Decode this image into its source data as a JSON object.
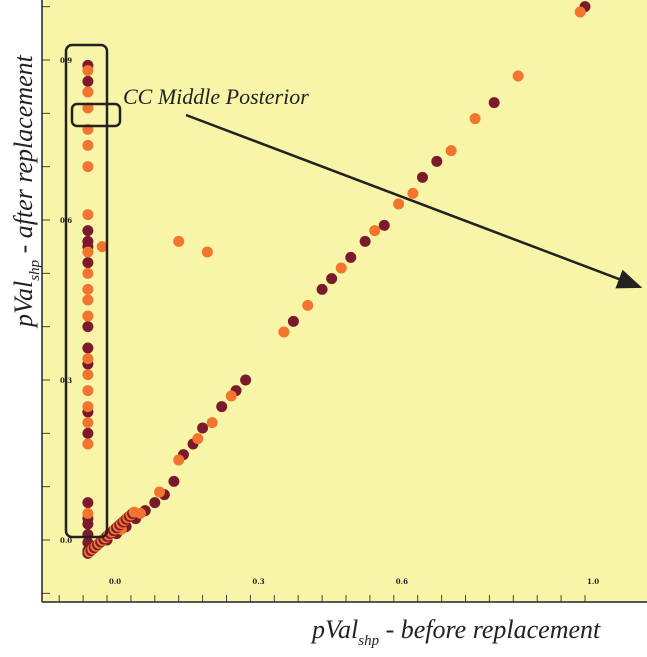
{
  "chart_data": {
    "type": "scatter",
    "xlabel": {
      "main": "pVal",
      "sub": "shp",
      "rest": " - before replacement"
    },
    "ylabel": {
      "main": "pVal",
      "sub": "shp",
      "rest": " - after replacement"
    },
    "xlim": [
      -0.13,
      1.05
    ],
    "ylim": [
      -0.14,
      1.0
    ],
    "x_ticks": [
      {
        "value": 0.0,
        "label": "0.0"
      },
      {
        "value": 0.3,
        "label": "0.3"
      },
      {
        "value": 0.6,
        "label": "0.6"
      },
      {
        "value": 1.0,
        "label": "1.0"
      }
    ],
    "y_ticks": [
      {
        "value": 0.0,
        "label": "0.0"
      },
      {
        "value": 0.3,
        "label": "0.3"
      },
      {
        "value": 0.6,
        "label": "0.6"
      },
      {
        "value": 0.9,
        "label": "0.9"
      }
    ],
    "grid": false,
    "background_color": "#f8f5a9",
    "series": [
      {
        "color": "#7a1a2c",
        "points": [
          [
            -0.04,
            0.89
          ],
          [
            -0.04,
            0.86
          ],
          [
            -0.04,
            0.58
          ],
          [
            -0.04,
            0.56
          ],
          [
            -0.04,
            0.55
          ],
          [
            -0.04,
            0.52
          ],
          [
            -0.04,
            0.4
          ],
          [
            -0.04,
            0.36
          ],
          [
            -0.04,
            0.33
          ],
          [
            -0.04,
            0.24
          ],
          [
            -0.04,
            0.2
          ],
          [
            -0.04,
            0.07
          ],
          [
            -0.04,
            0.04
          ],
          [
            -0.04,
            0.03
          ],
          [
            -0.04,
            0.01
          ],
          [
            -0.04,
            -0.005
          ],
          [
            -0.04,
            -0.02
          ],
          [
            0.0,
            0.0
          ],
          [
            0.02,
            0.012
          ],
          [
            0.04,
            0.025
          ],
          [
            0.06,
            0.04
          ],
          [
            0.08,
            0.055
          ],
          [
            0.1,
            0.07
          ],
          [
            0.12,
            0.085
          ],
          [
            0.14,
            0.11
          ],
          [
            0.16,
            0.16
          ],
          [
            0.18,
            0.18
          ],
          [
            0.2,
            0.21
          ],
          [
            0.24,
            0.25
          ],
          [
            0.27,
            0.28
          ],
          [
            0.29,
            0.3
          ],
          [
            0.39,
            0.41
          ],
          [
            0.45,
            0.47
          ],
          [
            0.47,
            0.49
          ],
          [
            0.51,
            0.53
          ],
          [
            0.54,
            0.56
          ],
          [
            0.58,
            0.59
          ],
          [
            0.66,
            0.68
          ],
          [
            0.69,
            0.71
          ],
          [
            0.81,
            0.82
          ],
          [
            1.0,
            1.0
          ]
        ]
      },
      {
        "color": "#f2742d",
        "points": [
          [
            -0.04,
            0.88
          ],
          [
            -0.04,
            0.84
          ],
          [
            -0.04,
            0.81
          ],
          [
            -0.04,
            0.77
          ],
          [
            -0.04,
            0.74
          ],
          [
            -0.04,
            0.7
          ],
          [
            -0.04,
            0.61
          ],
          [
            -0.04,
            0.54
          ],
          [
            -0.04,
            0.5
          ],
          [
            -0.04,
            0.47
          ],
          [
            -0.04,
            0.45
          ],
          [
            -0.04,
            0.42
          ],
          [
            -0.04,
            0.34
          ],
          [
            -0.04,
            0.31
          ],
          [
            -0.04,
            0.28
          ],
          [
            -0.04,
            0.25
          ],
          [
            -0.04,
            0.22
          ],
          [
            -0.04,
            0.18
          ],
          [
            -0.04,
            0.05
          ],
          [
            -0.01,
            0.55
          ],
          [
            0.15,
            0.56
          ],
          [
            0.21,
            0.54
          ],
          [
            0.03,
            0.02
          ],
          [
            0.07,
            0.05
          ],
          [
            0.11,
            0.09
          ],
          [
            0.15,
            0.15
          ],
          [
            0.19,
            0.19
          ],
          [
            0.22,
            0.22
          ],
          [
            0.26,
            0.27
          ],
          [
            0.37,
            0.39
          ],
          [
            0.42,
            0.44
          ],
          [
            0.49,
            0.51
          ],
          [
            0.56,
            0.58
          ],
          [
            0.61,
            0.63
          ],
          [
            0.64,
            0.65
          ],
          [
            0.72,
            0.73
          ],
          [
            0.77,
            0.79
          ],
          [
            0.86,
            0.87
          ],
          [
            0.99,
            0.99
          ]
        ]
      }
    ],
    "annotations": [
      {
        "text": "CC Middle Posterior"
      }
    ]
  }
}
